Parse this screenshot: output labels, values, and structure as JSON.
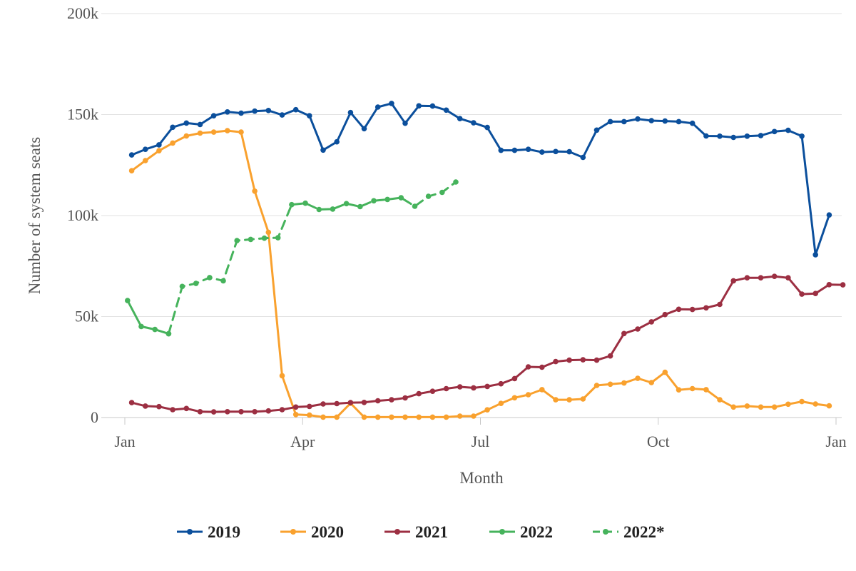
{
  "chart_data": {
    "type": "line",
    "xlabel": "Month",
    "ylabel": "Number of system seats",
    "x_ticks": [
      {
        "label": "Jan",
        "week": 0
      },
      {
        "label": "Apr",
        "week": 13
      },
      {
        "label": "Jul",
        "week": 26
      },
      {
        "label": "Oct",
        "week": 39
      },
      {
        "label": "Jan",
        "week": 52
      }
    ],
    "y_ticks": [
      {
        "label": "0",
        "value": 0
      },
      {
        "label": "50k",
        "value": 50000
      },
      {
        "label": "100k",
        "value": 100000
      },
      {
        "label": "150k",
        "value": 150000
      },
      {
        "label": "200k",
        "value": 200000
      }
    ],
    "ylim": [
      0,
      200000
    ],
    "grid": "horizontal",
    "legend_position": "bottom-center",
    "series": [
      {
        "name": "2019",
        "color": "#0b4f9c",
        "dash": false,
        "points": [
          [
            0.5,
            130000
          ],
          [
            1.5,
            132800
          ],
          [
            2.5,
            135000
          ],
          [
            3.5,
            143700
          ],
          [
            4.5,
            145800
          ],
          [
            5.5,
            145100
          ],
          [
            6.5,
            149400
          ],
          [
            7.5,
            151300
          ],
          [
            8.5,
            150700
          ],
          [
            9.5,
            151700
          ],
          [
            10.5,
            152000
          ],
          [
            11.5,
            149800
          ],
          [
            12.5,
            152400
          ],
          [
            13.5,
            149400
          ],
          [
            14.5,
            132400
          ],
          [
            15.5,
            136500
          ],
          [
            16.5,
            151000
          ],
          [
            17.5,
            143000
          ],
          [
            18.5,
            153700
          ],
          [
            19.5,
            155500
          ],
          [
            20.5,
            145700
          ],
          [
            21.5,
            154300
          ],
          [
            22.5,
            154200
          ],
          [
            23.5,
            152200
          ],
          [
            24.5,
            148000
          ],
          [
            25.5,
            145900
          ],
          [
            26.5,
            143600
          ],
          [
            27.5,
            132300
          ],
          [
            28.5,
            132300
          ],
          [
            29.5,
            132800
          ],
          [
            30.5,
            131400
          ],
          [
            31.5,
            131700
          ],
          [
            32.5,
            131600
          ],
          [
            33.5,
            128800
          ],
          [
            34.5,
            142300
          ],
          [
            35.5,
            146500
          ],
          [
            36.5,
            146500
          ],
          [
            37.5,
            147800
          ],
          [
            38.5,
            147000
          ],
          [
            39.5,
            146800
          ],
          [
            40.5,
            146500
          ],
          [
            41.5,
            145700
          ],
          [
            42.5,
            139400
          ],
          [
            43.5,
            139300
          ],
          [
            44.5,
            138700
          ],
          [
            45.5,
            139300
          ],
          [
            46.5,
            139600
          ],
          [
            47.5,
            141600
          ],
          [
            48.5,
            142200
          ],
          [
            49.5,
            139300
          ],
          [
            50.5,
            80600
          ],
          [
            51.5,
            100300
          ]
        ]
      },
      {
        "name": "2020",
        "color": "#f9a12e",
        "dash": false,
        "points": [
          [
            0.5,
            122200
          ],
          [
            1.5,
            127200
          ],
          [
            2.5,
            132100
          ],
          [
            3.5,
            135900
          ],
          [
            4.5,
            139400
          ],
          [
            5.5,
            140800
          ],
          [
            6.5,
            141300
          ],
          [
            7.5,
            142000
          ],
          [
            8.5,
            141300
          ],
          [
            9.5,
            112100
          ],
          [
            10.5,
            91700
          ],
          [
            11.5,
            20700
          ],
          [
            12.5,
            1500
          ],
          [
            13.5,
            1200
          ],
          [
            14.5,
            200
          ],
          [
            15.5,
            200
          ],
          [
            16.5,
            7100
          ],
          [
            17.5,
            200
          ],
          [
            18.5,
            200
          ],
          [
            19.5,
            200
          ],
          [
            20.5,
            200
          ],
          [
            21.5,
            200
          ],
          [
            22.5,
            200
          ],
          [
            23.5,
            200
          ],
          [
            24.5,
            700
          ],
          [
            25.5,
            700
          ],
          [
            26.5,
            3800
          ],
          [
            27.5,
            7000
          ],
          [
            28.5,
            9800
          ],
          [
            29.5,
            11300
          ],
          [
            30.5,
            13800
          ],
          [
            31.5,
            8800
          ],
          [
            32.5,
            8800
          ],
          [
            33.5,
            9200
          ],
          [
            34.5,
            15900
          ],
          [
            35.5,
            16500
          ],
          [
            36.5,
            17100
          ],
          [
            37.5,
            19400
          ],
          [
            38.5,
            17300
          ],
          [
            39.5,
            22400
          ],
          [
            40.5,
            13700
          ],
          [
            41.5,
            14300
          ],
          [
            42.5,
            13800
          ],
          [
            43.5,
            8800
          ],
          [
            44.5,
            5200
          ],
          [
            45.5,
            5700
          ],
          [
            46.5,
            5200
          ],
          [
            47.5,
            5200
          ],
          [
            48.5,
            6600
          ],
          [
            49.5,
            7900
          ],
          [
            50.5,
            6700
          ],
          [
            51.5,
            5800
          ]
        ]
      },
      {
        "name": "2021",
        "color": "#9c2f42",
        "dash": false,
        "points": [
          [
            0.5,
            7400
          ],
          [
            1.5,
            5700
          ],
          [
            2.5,
            5400
          ],
          [
            3.5,
            3900
          ],
          [
            4.5,
            4500
          ],
          [
            5.5,
            2900
          ],
          [
            6.5,
            2800
          ],
          [
            7.5,
            2900
          ],
          [
            8.5,
            2900
          ],
          [
            9.5,
            2900
          ],
          [
            10.5,
            3300
          ],
          [
            11.5,
            3900
          ],
          [
            12.5,
            5200
          ],
          [
            13.5,
            5500
          ],
          [
            14.5,
            6700
          ],
          [
            15.5,
            6900
          ],
          [
            16.5,
            7400
          ],
          [
            17.5,
            7500
          ],
          [
            18.5,
            8300
          ],
          [
            19.5,
            8800
          ],
          [
            20.5,
            9700
          ],
          [
            21.5,
            11800
          ],
          [
            22.5,
            13000
          ],
          [
            23.5,
            14300
          ],
          [
            24.5,
            15200
          ],
          [
            25.5,
            14700
          ],
          [
            26.5,
            15400
          ],
          [
            27.5,
            16700
          ],
          [
            28.5,
            19300
          ],
          [
            29.5,
            25100
          ],
          [
            30.5,
            24900
          ],
          [
            31.5,
            27700
          ],
          [
            32.5,
            28400
          ],
          [
            33.5,
            28600
          ],
          [
            34.5,
            28400
          ],
          [
            35.5,
            30500
          ],
          [
            36.5,
            41600
          ],
          [
            37.5,
            43800
          ],
          [
            38.5,
            47400
          ],
          [
            39.5,
            51000
          ],
          [
            40.5,
            53600
          ],
          [
            41.5,
            53500
          ],
          [
            42.5,
            54300
          ],
          [
            43.5,
            56000
          ],
          [
            44.5,
            67700
          ],
          [
            45.5,
            69200
          ],
          [
            46.5,
            69200
          ],
          [
            47.5,
            69900
          ],
          [
            48.5,
            69200
          ],
          [
            49.5,
            61100
          ],
          [
            50.5,
            61400
          ],
          [
            51.5,
            65800
          ],
          [
            52.5,
            65700
          ]
        ]
      },
      {
        "name": "2022",
        "color": "#46b35c",
        "dash": false,
        "points": [
          [
            0.2,
            57900
          ],
          [
            1.2,
            45100
          ],
          [
            2.2,
            43600
          ],
          [
            3.2,
            41500
          ]
        ]
      },
      {
        "name": "2022*",
        "color": "#46b35c",
        "dash": true,
        "points": [
          [
            3.2,
            41500
          ],
          [
            4.2,
            64900
          ],
          [
            5.2,
            66400
          ],
          [
            6.2,
            69300
          ],
          [
            7.2,
            67700
          ],
          [
            8.2,
            87600
          ],
          [
            9.2,
            88200
          ],
          [
            10.2,
            88800
          ],
          [
            11.2,
            89000
          ],
          [
            12.2,
            105400
          ],
          [
            13.2,
            106100
          ],
          [
            14.2,
            103000
          ],
          [
            15.2,
            103200
          ],
          [
            16.2,
            105900
          ],
          [
            17.2,
            104400
          ],
          [
            18.2,
            107300
          ],
          [
            19.2,
            108000
          ],
          [
            20.2,
            108800
          ],
          [
            21.2,
            104600
          ],
          [
            22.2,
            109500
          ],
          [
            23.2,
            111500
          ],
          [
            24.2,
            116600
          ]
        ]
      }
    ]
  }
}
